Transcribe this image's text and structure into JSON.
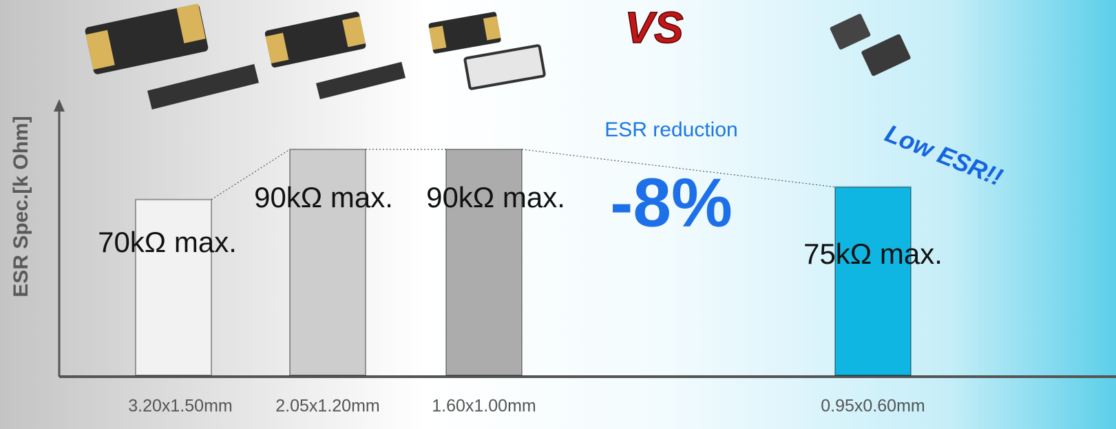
{
  "chart_data": {
    "type": "bar",
    "y_label": "ESR Spec.[k Ohm]",
    "categories": [
      "3.20x1.50mm",
      "2.05x1.20mm",
      "1.60x1.00mm",
      "0.95x0.60mm"
    ],
    "values": [
      70,
      90,
      90,
      75
    ],
    "value_labels": [
      "70kΩ max.",
      "90kΩ max.",
      "90kΩ max.",
      "75kΩ max."
    ],
    "colors": [
      "#f2f2f2",
      "#cdcdcd",
      "#acacac",
      "#10b6e2"
    ],
    "ylim": [
      0,
      110
    ],
    "annotations": {
      "vs": "VS",
      "reduction": "ESR reduction",
      "percent": "-8%",
      "low_esr": "Low ESR!!"
    }
  }
}
